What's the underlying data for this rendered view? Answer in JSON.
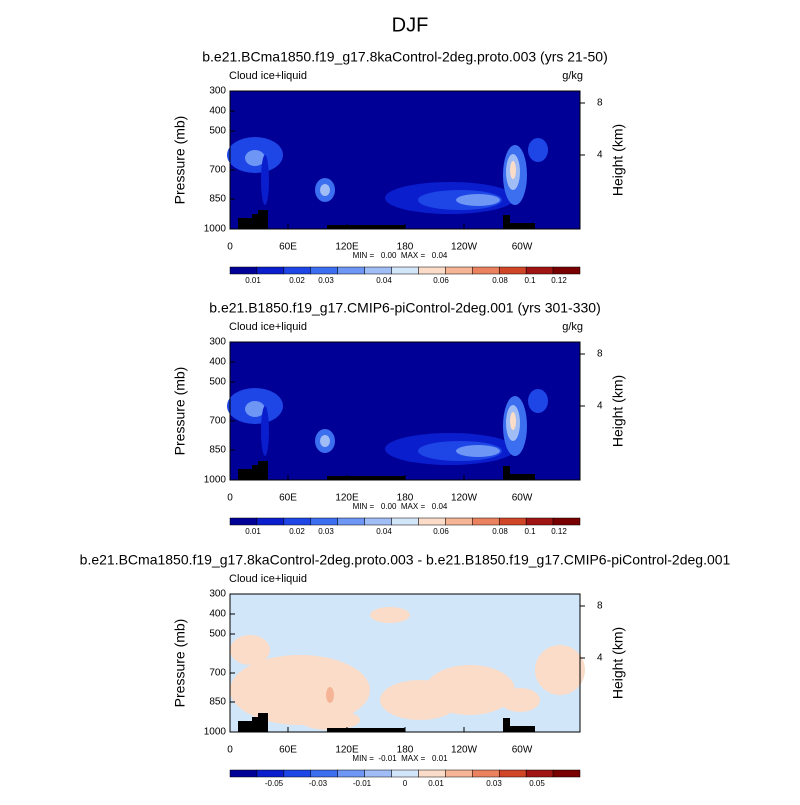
{
  "title": "DJF",
  "panels": [
    {
      "title": "b.e21.BCma1850.f19_g17.8kaControl-2deg.proto.003 (yrs 21-50)",
      "left_label": "Cloud ice+liquid",
      "right_label": "g/kg",
      "y_label": "Pressure (mb)",
      "y2_label": "Height (km)",
      "yticks": [
        "300",
        "400",
        "500",
        "700",
        "850",
        "1000"
      ],
      "y2ticks": [
        "8",
        "4"
      ],
      "xticks": [
        "0",
        "60E",
        "120E",
        "180",
        "120W",
        "60W"
      ],
      "stats": "MIN =   0.00  MAX =   0.04",
      "colorbar_labels": [
        "0.01",
        "0.02",
        "0.03",
        "0.04",
        "0.06",
        "0.08",
        "0.1",
        "0.12"
      ]
    },
    {
      "title": "b.e21.B1850.f19_g17.CMIP6-piControl-2deg.001 (yrs 301-330)",
      "left_label": "Cloud ice+liquid",
      "right_label": "g/kg",
      "y_label": "Pressure (mb)",
      "y2_label": "Height (km)",
      "yticks": [
        "300",
        "400",
        "500",
        "700",
        "850",
        "1000"
      ],
      "y2ticks": [
        "8",
        "4"
      ],
      "xticks": [
        "0",
        "60E",
        "120E",
        "180",
        "120W",
        "60W"
      ],
      "stats": "MIN =   0.00  MAX =   0.04",
      "colorbar_labels": [
        "0.01",
        "0.02",
        "0.03",
        "0.04",
        "0.06",
        "0.08",
        "0.1",
        "0.12"
      ]
    },
    {
      "title": "b.e21.BCma1850.f19_g17.8kaControl-2deg.proto.003 - b.e21.B1850.f19_g17.CMIP6-piControl-2deg.001",
      "left_label": "Cloud ice+liquid",
      "y_label": "Pressure (mb)",
      "y2_label": "Height (km)",
      "yticks": [
        "300",
        "400",
        "500",
        "700",
        "850",
        "1000"
      ],
      "y2ticks": [
        "8",
        "4"
      ],
      "xticks": [
        "0",
        "60E",
        "120E",
        "180",
        "120W",
        "60W"
      ],
      "stats": "MIN =  -0.01  MAX =   0.01",
      "colorbar_labels": [
        "-0.05",
        "-0.03",
        "-0.01",
        "0",
        "0.01",
        "0.03",
        "0.05"
      ]
    }
  ]
}
